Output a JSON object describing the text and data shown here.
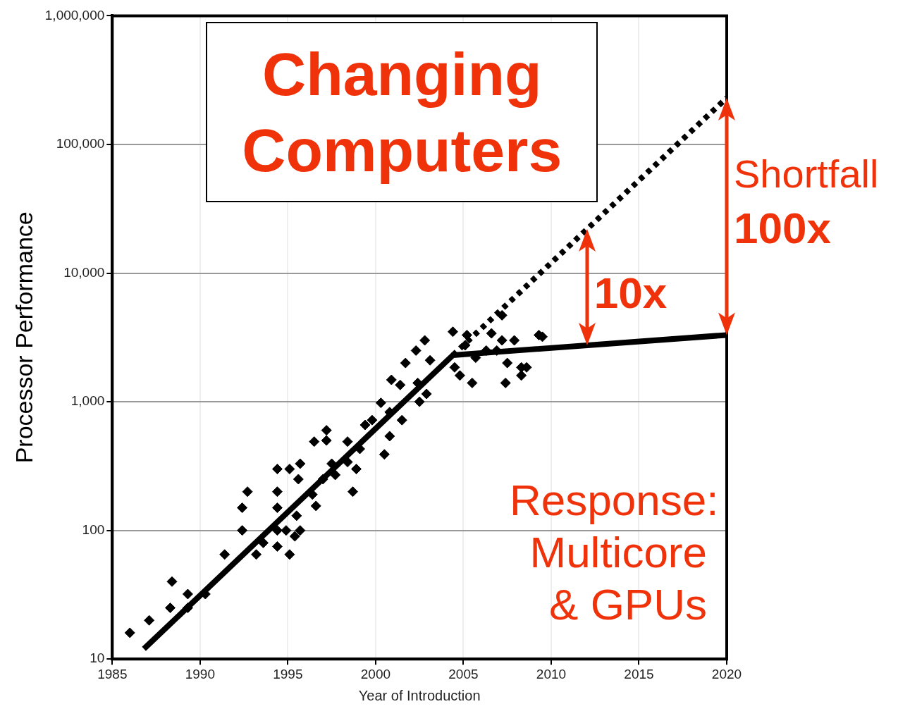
{
  "chart_data": {
    "type": "scatter",
    "title": "Changing Computers",
    "xlabel": "Year of Introduction",
    "ylabel": "Processor Performance",
    "xlim": [
      1985,
      2020
    ],
    "xticks": [
      1985,
      1990,
      1995,
      2000,
      2005,
      2010,
      2015,
      2020
    ],
    "ylim": [
      10,
      1000000
    ],
    "yticks": [
      10,
      100,
      {
        "value": 1000,
        "label": "1,000"
      },
      {
        "value": 10000,
        "label": "10,000"
      },
      {
        "value": 100000,
        "label": "100,000"
      },
      {
        "value": 1000000,
        "label": "1,000,000"
      }
    ],
    "log": "y",
    "grid": true,
    "series": [
      {
        "type": "scatter",
        "marker": "diamond",
        "color": "#000000",
        "x": [
          1986,
          1987.1,
          1988.3,
          1988.4,
          1989.3,
          1989.3,
          1990.3,
          1991.4,
          1992.4,
          1992.4,
          1992.7,
          1993.2,
          1993.6,
          1994.4,
          1994.4,
          1994.4,
          1994.4,
          1994.4,
          1994.9,
          1995.1,
          1995.1,
          1995.4,
          1995.5,
          1995.6,
          1995.7,
          1995.7,
          1996.4,
          1996.5,
          1996.6,
          1997,
          1997.2,
          1997.2,
          1997.5,
          1997.7,
          1998.4,
          1998.4,
          1998.7,
          1998.9,
          1999.1,
          1999.4,
          1999.8,
          2000.3,
          2000.5,
          2000.8,
          2000.8,
          2000.9,
          2001.4,
          2001.5,
          2001.7,
          2002.3,
          2002.4,
          2002.5,
          2002.8,
          2002.9,
          2003.1,
          2004.4,
          2004.5,
          2004.8,
          2005.1,
          2005.2,
          2005.5,
          2005.7,
          2006.3,
          2006.6,
          2006.9,
          2007.2,
          2007.2,
          2007.4,
          2007.5,
          2007.9,
          2008.3,
          2008.3,
          2008.6,
          2009.3,
          2009.5
        ],
        "values": [
          16,
          20,
          25,
          40,
          25,
          32,
          32,
          65,
          100,
          150,
          200,
          65,
          80,
          300,
          200,
          150,
          75,
          100,
          100,
          300,
          65,
          90,
          130,
          250,
          330,
          100,
          190,
          490,
          155,
          250,
          600,
          500,
          330,
          270,
          490,
          340,
          200,
          300,
          430,
          660,
          720,
          980,
          390,
          830,
          540,
          1480,
          1350,
          720,
          2000,
          2500,
          1400,
          1000,
          3000,
          1150,
          2100,
          3500,
          1850,
          1600,
          2750,
          3300,
          1400,
          2200,
          2500,
          3400,
          2500,
          4700,
          3000,
          1400,
          2000,
          3000,
          1850,
          1600,
          1850,
          3300,
          3200
        ]
      },
      {
        "type": "line",
        "marker": "none",
        "line_style": "solid",
        "color": "#000000",
        "x": [
          1986.8,
          2004.4,
          2020
        ],
        "values": [
          12,
          2300,
          3300
        ]
      },
      {
        "type": "line",
        "marker": "none",
        "line_style": "dotted",
        "color": "#000000",
        "x": [
          2004.4,
          2020
        ],
        "values": [
          2300,
          230000
        ]
      }
    ],
    "annotations": [
      "10x",
      "Shortfall",
      "100x",
      "Response: Multicore & GPUs"
    ]
  }
}
